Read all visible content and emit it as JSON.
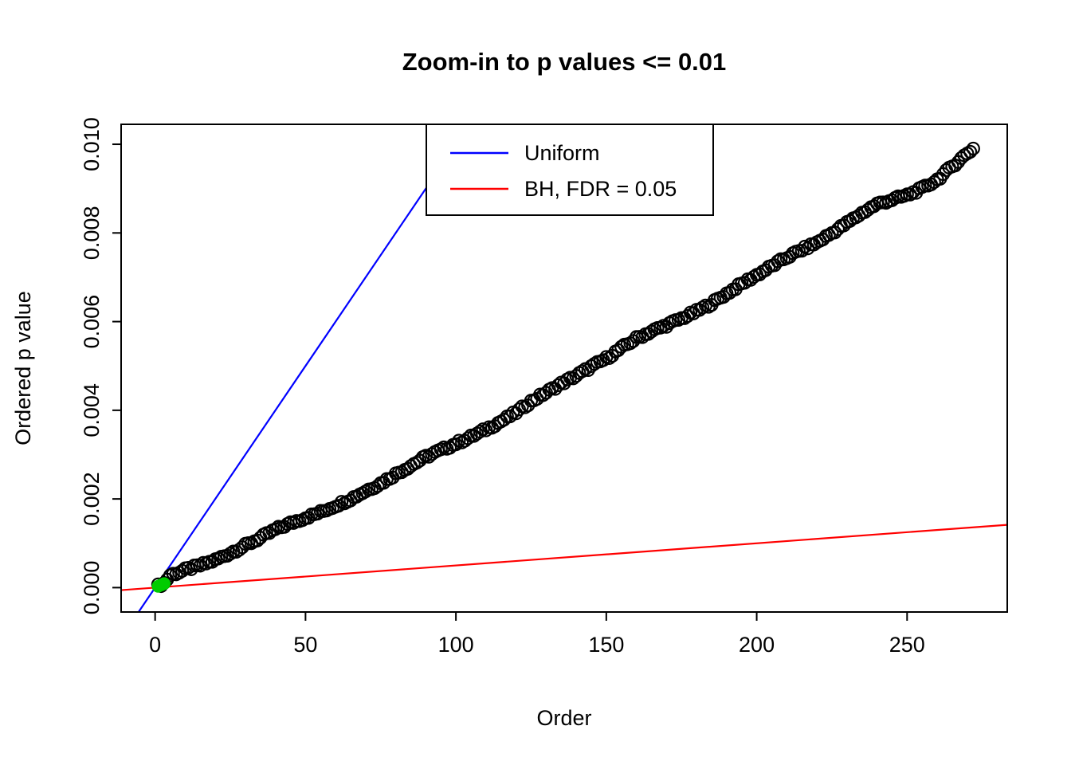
{
  "chart_data": {
    "type": "scatter",
    "title": "Zoom-in to p values <= 0.01",
    "xlabel": "Order",
    "ylabel": "Ordered p value",
    "xlim": [
      -11.3,
      283.3
    ],
    "ylim": [
      -0.00055,
      0.01045
    ],
    "x_ticks": [
      0,
      50,
      100,
      150,
      200,
      250
    ],
    "y_ticks": [
      0,
      0.002,
      0.004,
      0.006,
      0.008,
      0.01
    ],
    "y_tick_labels": [
      "0.000",
      "0.002",
      "0.004",
      "0.006",
      "0.008",
      "0.010"
    ],
    "grid": false,
    "legend": {
      "position": "top-center",
      "entries": [
        {
          "label": "Uniform",
          "color": "#0000FF"
        },
        {
          "label": "BH, FDR = 0.05",
          "color": "#FF0000"
        }
      ]
    },
    "lines": [
      {
        "name": "uniform-line",
        "label": "Uniform",
        "color": "#0000FF",
        "slope": 0.0001,
        "intercept": 0
      },
      {
        "name": "bh-line",
        "label": "BH, FDR = 0.05",
        "color": "#FF0000",
        "slope": 5e-06,
        "intercept": 0
      }
    ],
    "scatter": {
      "name": "ordered-p-values",
      "marker": "open-circle",
      "color": "#000000",
      "count": 272,
      "jitter": 4e-05,
      "keypoints": [
        [
          1,
          4e-05
        ],
        [
          3,
          0.0001
        ],
        [
          5,
          0.00028
        ],
        [
          8,
          0.00035
        ],
        [
          10,
          0.0004
        ],
        [
          15,
          0.0005
        ],
        [
          20,
          0.00062
        ],
        [
          25,
          0.00078
        ],
        [
          30,
          0.00095
        ],
        [
          35,
          0.00112
        ],
        [
          40,
          0.00131
        ],
        [
          45,
          0.00145
        ],
        [
          50,
          0.00158
        ],
        [
          55,
          0.0017
        ],
        [
          60,
          0.00185
        ],
        [
          65,
          0.002
        ],
        [
          70,
          0.00218
        ],
        [
          75,
          0.00235
        ],
        [
          80,
          0.00256
        ],
        [
          85,
          0.00275
        ],
        [
          90,
          0.00295
        ],
        [
          95,
          0.0031
        ],
        [
          100,
          0.00325
        ],
        [
          105,
          0.0034
        ],
        [
          110,
          0.00357
        ],
        [
          115,
          0.00375
        ],
        [
          120,
          0.00395
        ],
        [
          125,
          0.0042
        ],
        [
          130,
          0.0044
        ],
        [
          135,
          0.0046
        ],
        [
          140,
          0.00478
        ],
        [
          145,
          0.00498
        ],
        [
          150,
          0.00517
        ],
        [
          155,
          0.0054
        ],
        [
          160,
          0.00562
        ],
        [
          165,
          0.00578
        ],
        [
          170,
          0.00592
        ],
        [
          175,
          0.00607
        ],
        [
          180,
          0.00623
        ],
        [
          185,
          0.00641
        ],
        [
          190,
          0.00663
        ],
        [
          195,
          0.00685
        ],
        [
          200,
          0.00705
        ],
        [
          205,
          0.00725
        ],
        [
          210,
          0.00745
        ],
        [
          215,
          0.00762
        ],
        [
          220,
          0.00778
        ],
        [
          225,
          0.008
        ],
        [
          230,
          0.00822
        ],
        [
          235,
          0.00845
        ],
        [
          240,
          0.00865
        ],
        [
          245,
          0.00875
        ],
        [
          250,
          0.00885
        ],
        [
          255,
          0.009
        ],
        [
          260,
          0.0092
        ],
        [
          265,
          0.0095
        ],
        [
          270,
          0.0098
        ],
        [
          272,
          0.0099
        ]
      ]
    },
    "significant_points": {
      "name": "bh-significant-points",
      "color": "#00CC00",
      "points": [
        [
          1,
          3e-05
        ],
        [
          2,
          6e-05
        ],
        [
          3,
          9e-05
        ]
      ]
    }
  }
}
